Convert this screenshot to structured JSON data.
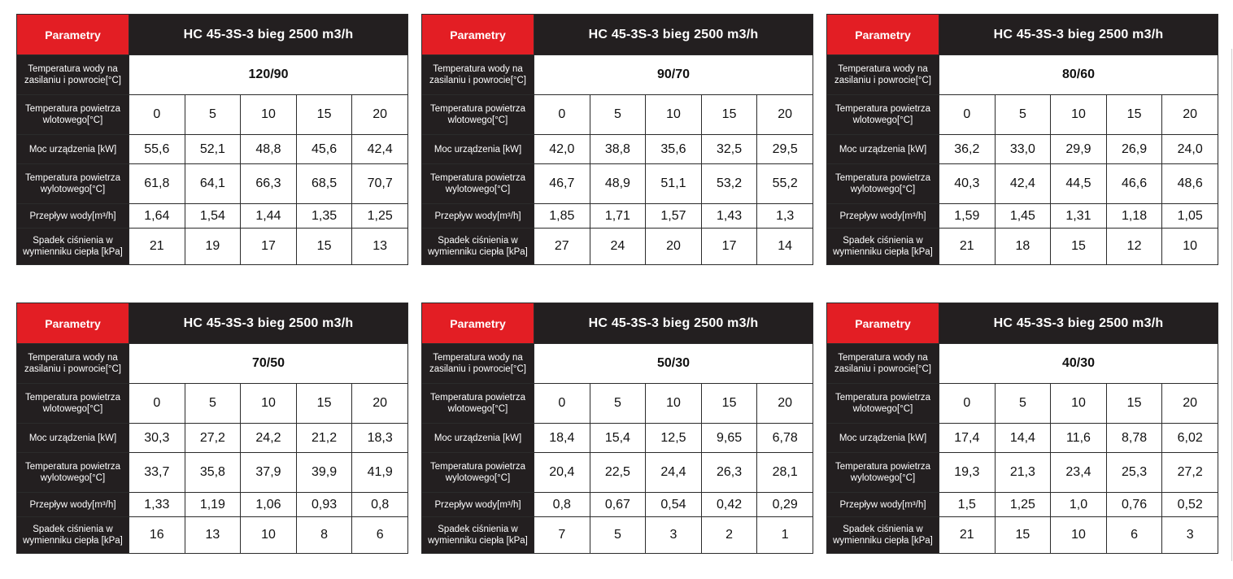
{
  "header": {
    "param_label": "Parametry",
    "model": "HC 45-3S-3 bieg 2500 m3/h"
  },
  "row_labels": {
    "water_temp": "Temperatura wody na zasilaniu i powrocie[°C]",
    "inlet_temp": "Temperatura powietrza wlotowego[°C]",
    "power": "Moc urządzenia [kW]",
    "outlet_temp": "Temperatura powietrza wylotowego[°C]",
    "flow": "Przepływ wody[m³/h]",
    "pressure_drop": "Spadek ciśnienia w wymienniku ciepła [kPa]"
  },
  "tables": [
    {
      "water_temp": "120/90",
      "inlet": [
        "0",
        "5",
        "10",
        "15",
        "20"
      ],
      "power": [
        "55,6",
        "52,1",
        "48,8",
        "45,6",
        "42,4"
      ],
      "outlet": [
        "61,8",
        "64,1",
        "66,3",
        "68,5",
        "70,7"
      ],
      "flow": [
        "1,64",
        "1,54",
        "1,44",
        "1,35",
        "1,25"
      ],
      "drop": [
        "21",
        "19",
        "17",
        "15",
        "13"
      ]
    },
    {
      "water_temp": "90/70",
      "inlet": [
        "0",
        "5",
        "10",
        "15",
        "20"
      ],
      "power": [
        "42,0",
        "38,8",
        "35,6",
        "32,5",
        "29,5"
      ],
      "outlet": [
        "46,7",
        "48,9",
        "51,1",
        "53,2",
        "55,2"
      ],
      "flow": [
        "1,85",
        "1,71",
        "1,57",
        "1,43",
        "1,3"
      ],
      "drop": [
        "27",
        "24",
        "20",
        "17",
        "14"
      ]
    },
    {
      "water_temp": "80/60",
      "inlet": [
        "0",
        "5",
        "10",
        "15",
        "20"
      ],
      "power": [
        "36,2",
        "33,0",
        "29,9",
        "26,9",
        "24,0"
      ],
      "outlet": [
        "40,3",
        "42,4",
        "44,5",
        "46,6",
        "48,6"
      ],
      "flow": [
        "1,59",
        "1,45",
        "1,31",
        "1,18",
        "1,05"
      ],
      "drop": [
        "21",
        "18",
        "15",
        "12",
        "10"
      ]
    },
    {
      "water_temp": "70/50",
      "inlet": [
        "0",
        "5",
        "10",
        "15",
        "20"
      ],
      "power": [
        "30,3",
        "27,2",
        "24,2",
        "21,2",
        "18,3"
      ],
      "outlet": [
        "33,7",
        "35,8",
        "37,9",
        "39,9",
        "41,9"
      ],
      "flow": [
        "1,33",
        "1,19",
        "1,06",
        "0,93",
        "0,8"
      ],
      "drop": [
        "16",
        "13",
        "10",
        "8",
        "6"
      ]
    },
    {
      "water_temp": "50/30",
      "inlet": [
        "0",
        "5",
        "10",
        "15",
        "20"
      ],
      "power": [
        "18,4",
        "15,4",
        "12,5",
        "9,65",
        "6,78"
      ],
      "outlet": [
        "20,4",
        "22,5",
        "24,4",
        "26,3",
        "28,1"
      ],
      "flow": [
        "0,8",
        "0,67",
        "0,54",
        "0,42",
        "0,29"
      ],
      "drop": [
        "7",
        "5",
        "3",
        "2",
        "1"
      ]
    },
    {
      "water_temp": "40/30",
      "inlet": [
        "0",
        "5",
        "10",
        "15",
        "20"
      ],
      "power": [
        "17,4",
        "14,4",
        "11,6",
        "8,78",
        "6,02"
      ],
      "outlet": [
        "19,3",
        "21,3",
        "23,4",
        "25,3",
        "27,2"
      ],
      "flow": [
        "1,5",
        "1,25",
        "1,0",
        "0,76",
        "0,52"
      ],
      "drop": [
        "21",
        "15",
        "10",
        "6",
        "3"
      ]
    }
  ]
}
